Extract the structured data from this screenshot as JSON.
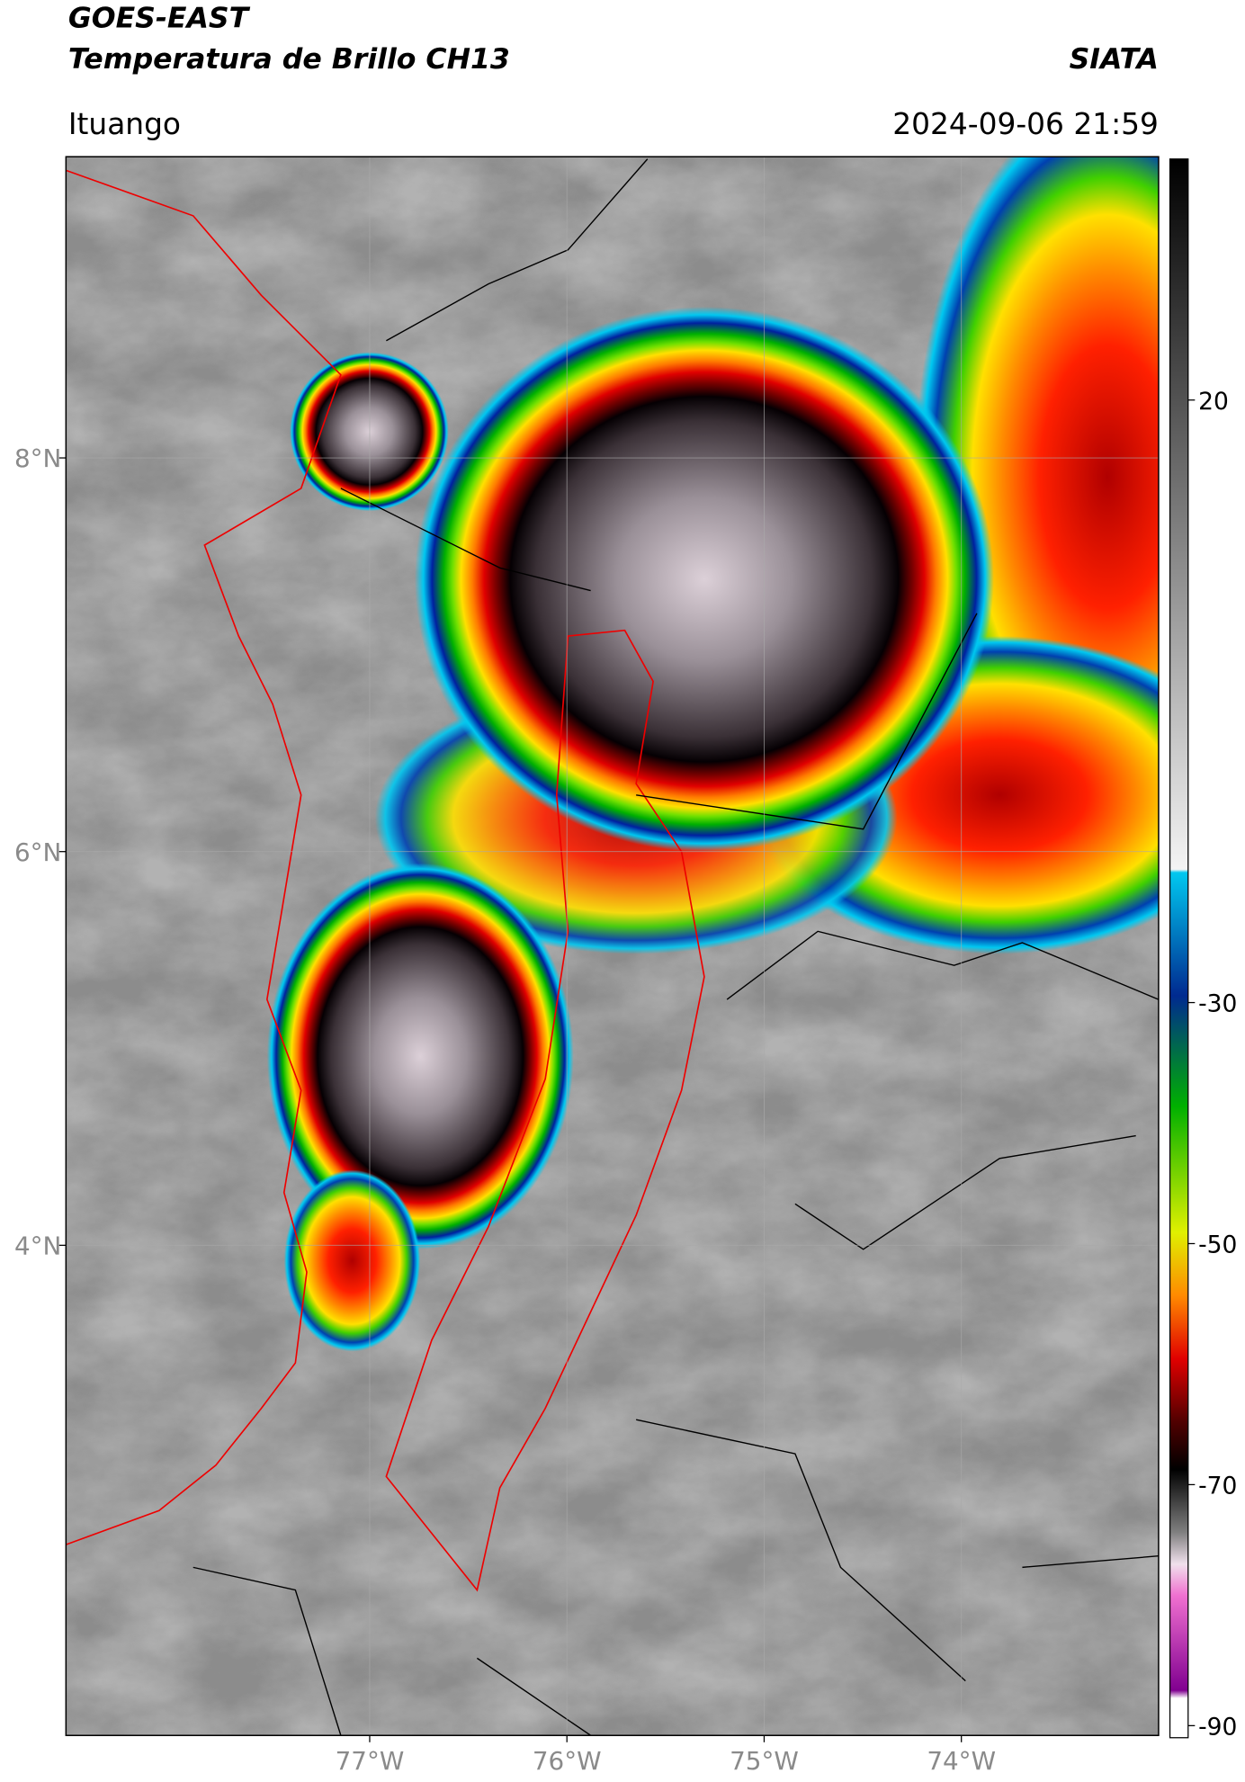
{
  "header": {
    "satellite": "GOES-EAST",
    "product": "Temperatura de Brillo CH13",
    "agency": "SIATA",
    "location": "Ituango",
    "datetime": "2024-09-06 21:59"
  },
  "map": {
    "lonlim": [
      -78.54,
      -73.0
    ],
    "latlim": [
      1.51,
      9.53
    ],
    "lon_ticks": [
      {
        "value": -77,
        "label": "77°W"
      },
      {
        "value": -76,
        "label": "76°W"
      },
      {
        "value": -75,
        "label": "75°W"
      },
      {
        "value": -74,
        "label": "74°W"
      }
    ],
    "lat_ticks": [
      {
        "value": 8,
        "label": "8°N"
      },
      {
        "value": 6,
        "label": "6°N"
      },
      {
        "value": 4,
        "label": "4°N"
      }
    ],
    "grid": true
  },
  "colorbar": {
    "lim": [
      -91,
      40
    ],
    "ticks": [
      20,
      -30,
      -50,
      -70,
      -90
    ]
  }
}
